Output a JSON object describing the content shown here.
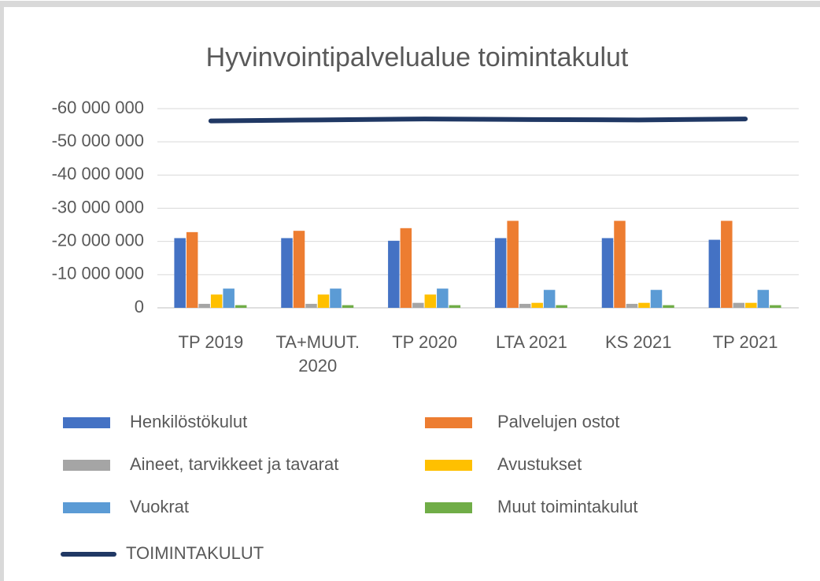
{
  "chart_data": {
    "type": "bar",
    "title": "Hyvinvointipalvelualue toimintakulut",
    "categories": [
      "TP 2019",
      "TA+MUUT. 2020",
      "TP 2020",
      "LTA 2021",
      "KS 2021",
      "TP 2021"
    ],
    "ylim": [
      0,
      -60000000
    ],
    "yticks": [
      {
        "value": -60000000,
        "label": "-60 000 000"
      },
      {
        "value": -50000000,
        "label": "-50 000 000"
      },
      {
        "value": -40000000,
        "label": "-40 000 000"
      },
      {
        "value": -30000000,
        "label": "-30 000 000"
      },
      {
        "value": -20000000,
        "label": "-20 000 000"
      },
      {
        "value": -10000000,
        "label": "-10 000 000"
      },
      0
    ],
    "grid": true,
    "series": [
      {
        "name": "Henkilöstökulut",
        "color": "#4472c4",
        "values": [
          -21000000,
          -21000000,
          -20200000,
          -21000000,
          -21000000,
          -20500000
        ]
      },
      {
        "name": "Palvelujen ostot",
        "color": "#ed7d31",
        "values": [
          -22800000,
          -23200000,
          -24000000,
          -26200000,
          -26200000,
          -26200000
        ]
      },
      {
        "name": "Aineet, tarvikkeet ja tavarat",
        "color": "#a5a5a5",
        "values": [
          -1200000,
          -1200000,
          -1500000,
          -1200000,
          -1200000,
          -1500000
        ]
      },
      {
        "name": "Avustukset",
        "color": "#ffc000",
        "values": [
          -4000000,
          -4000000,
          -4000000,
          -1500000,
          -1500000,
          -1500000
        ]
      },
      {
        "name": "Vuokrat",
        "color": "#5b9bd5",
        "values": [
          -5800000,
          -5800000,
          -5800000,
          -5400000,
          -5400000,
          -5400000
        ]
      },
      {
        "name": "Muut toimintakulut",
        "color": "#70ad47",
        "values": [
          -800000,
          -800000,
          -800000,
          -800000,
          -800000,
          -800000
        ]
      },
      {
        "name": "TOIMINTAKULUT",
        "color": "#203864",
        "type": "line",
        "values": [
          -56300000,
          -56600000,
          -56900000,
          -56700000,
          -56600000,
          -56900000
        ]
      }
    ]
  }
}
